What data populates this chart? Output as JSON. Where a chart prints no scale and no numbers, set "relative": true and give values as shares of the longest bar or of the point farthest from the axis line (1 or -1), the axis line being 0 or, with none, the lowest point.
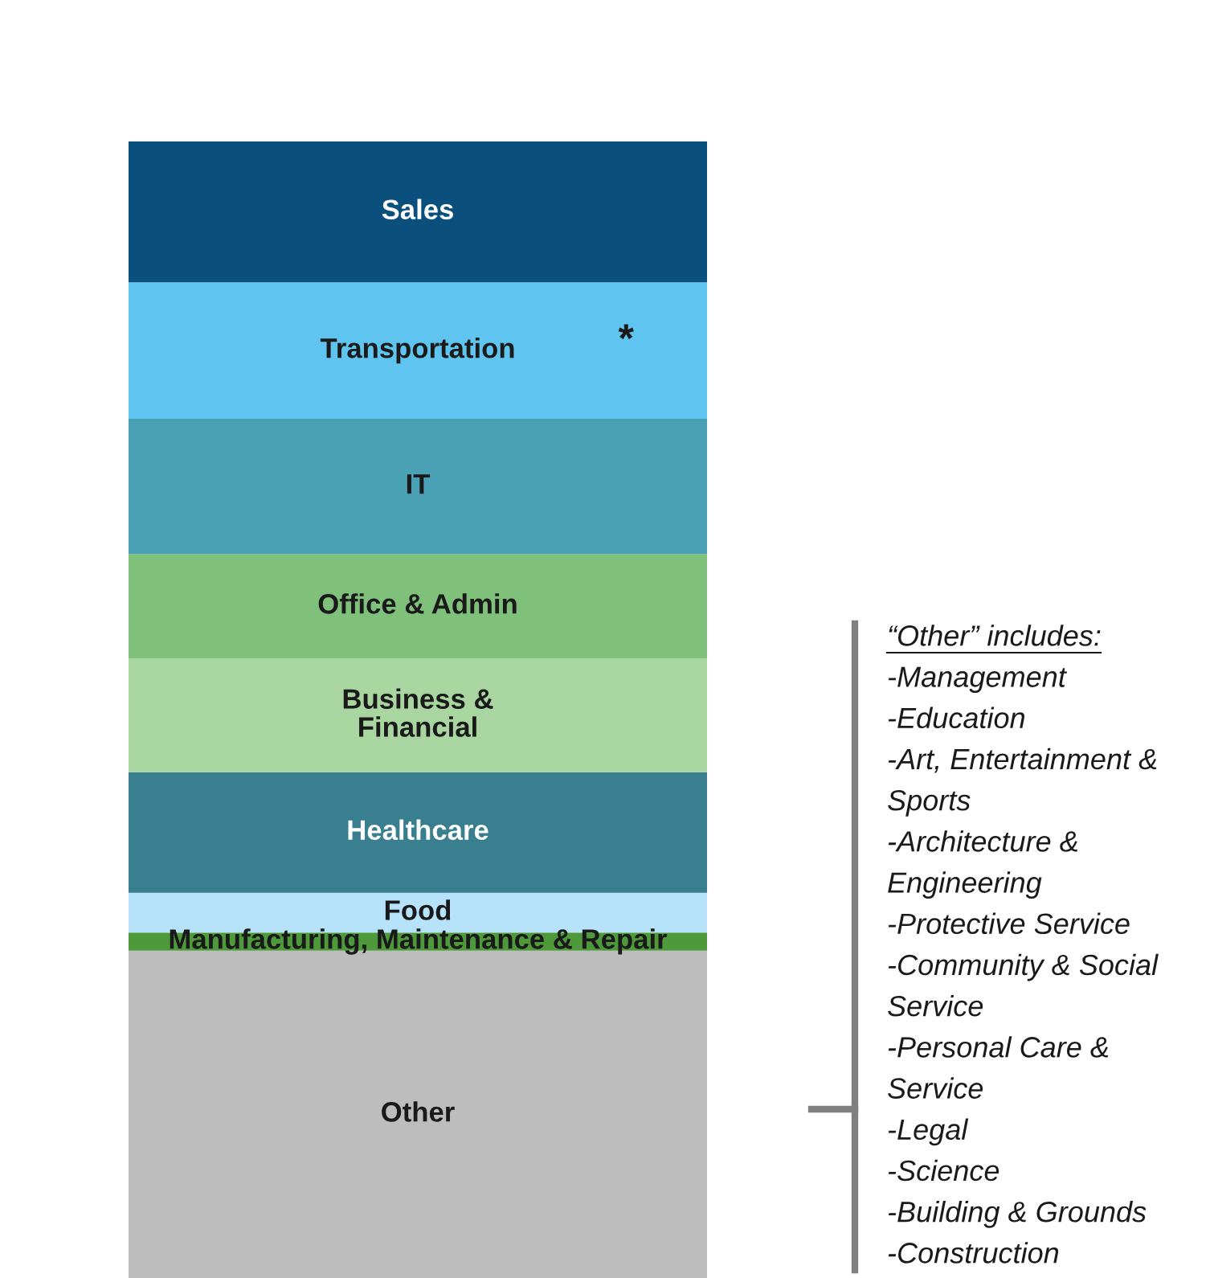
{
  "chart_data": {
    "type": "bar",
    "relative": true,
    "stacked": true,
    "categories": [
      null
    ],
    "series": [
      {
        "name": "Other",
        "color": "#bdbdbd",
        "values": [
          0.288
        ]
      },
      {
        "name": "Manufacturing, Maintenance & Repair",
        "color": "#4e9a3a",
        "values": [
          0.016
        ]
      },
      {
        "name": "Food",
        "color": "#b6e3f9",
        "values": [
          0.035
        ]
      },
      {
        "name": "Healthcare",
        "color": "#3a7f8f",
        "values": [
          0.106
        ]
      },
      {
        "name": "Business &\nFinancial",
        "color": "#a8d5a0",
        "values": [
          0.1
        ]
      },
      {
        "name": "Office & Admin",
        "color": "#7fc07a",
        "values": [
          0.092
        ]
      },
      {
        "name": "IT",
        "color": "#4aa0b5",
        "values": [
          0.119
        ]
      },
      {
        "name": "Transportation",
        "color": "#5fc5f0",
        "values": [
          0.12
        ]
      },
      {
        "name": "Sales",
        "color": "#0b4f7c",
        "values": [
          0.124
        ]
      }
    ],
    "annotations": [
      "*",
      "“Other” includes:",
      "-Management",
      "-Education",
      "-Art, Entertainment &",
      "Sports",
      "-Architecture &",
      "Engineering",
      "-Protective Service",
      "-Community & Social",
      "Service",
      "-Personal Care &",
      "Service",
      "-Legal",
      "-Science",
      "-Building & Grounds",
      "-Construction"
    ]
  }
}
